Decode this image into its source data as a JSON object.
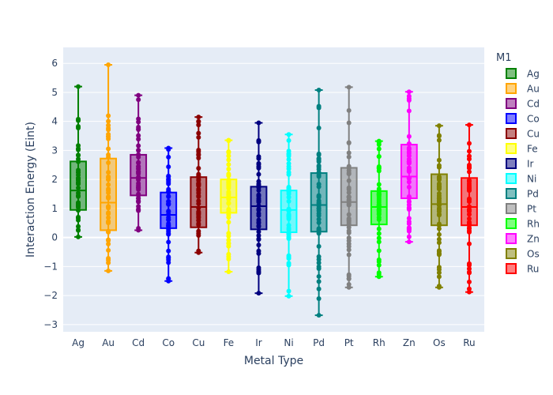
{
  "chart_data": {
    "type": "box",
    "xlabel": "Metal Type",
    "ylabel": "Interaction Energy (Eint)",
    "ylim": [
      -3.25,
      6.55
    ],
    "yticks": [
      -3,
      -2,
      -1,
      0,
      1,
      2,
      3,
      4,
      5,
      6
    ],
    "legend_title": "M1",
    "legend_position": "right",
    "grid": true,
    "categories": [
      "Ag",
      "Au",
      "Cd",
      "Co",
      "Cu",
      "Fe",
      "Ir",
      "Ni",
      "Pd",
      "Pt",
      "Rh",
      "Zn",
      "Os",
      "Ru"
    ],
    "series": [
      {
        "name": "Ag",
        "color": "#008000",
        "min": 0.02,
        "q1": 0.95,
        "median": 1.62,
        "q3": 2.62,
        "max": 5.2
      },
      {
        "name": "Au",
        "color": "#FFA500",
        "min": -1.15,
        "q1": 0.25,
        "median": 1.2,
        "q3": 2.72,
        "max": 5.95
      },
      {
        "name": "Cd",
        "color": "#800080",
        "min": 0.25,
        "q1": 1.45,
        "median": 2.05,
        "q3": 2.85,
        "max": 4.9
      },
      {
        "name": "Co",
        "color": "#0000FF",
        "min": -1.5,
        "q1": 0.32,
        "median": 0.78,
        "q3": 1.55,
        "max": 3.08
      },
      {
        "name": "Cu",
        "color": "#8B0000",
        "min": -0.52,
        "q1": 0.35,
        "median": 1.05,
        "q3": 2.08,
        "max": 4.15
      },
      {
        "name": "Fe",
        "color": "#FFFF00",
        "min": -1.18,
        "q1": 0.85,
        "median": 1.38,
        "q3": 2.0,
        "max": 3.35
      },
      {
        "name": "Ir",
        "color": "#000080",
        "min": -1.92,
        "q1": 0.28,
        "median": 1.08,
        "q3": 1.75,
        "max": 3.95
      },
      {
        "name": "Ni",
        "color": "#00FFFF",
        "min": -2.02,
        "q1": 0.18,
        "median": 0.95,
        "q3": 1.62,
        "max": 3.55
      },
      {
        "name": "Pd",
        "color": "#008080",
        "min": -2.68,
        "q1": 0.2,
        "median": 1.12,
        "q3": 2.22,
        "max": 5.08
      },
      {
        "name": "Pt",
        "color": "#808080",
        "min": -1.72,
        "q1": 0.42,
        "median": 1.22,
        "q3": 2.4,
        "max": 5.18
      },
      {
        "name": "Rh",
        "color": "#00FF00",
        "min": -1.35,
        "q1": 0.45,
        "median": 1.05,
        "q3": 1.6,
        "max": 3.32
      },
      {
        "name": "Zn",
        "color": "#FF00FF",
        "min": -0.15,
        "q1": 1.35,
        "median": 2.1,
        "q3": 3.2,
        "max": 5.02
      },
      {
        "name": "Os",
        "color": "#808000",
        "min": -1.72,
        "q1": 0.42,
        "median": 1.15,
        "q3": 2.18,
        "max": 3.85
      },
      {
        "name": "Ru",
        "color": "#FF0000",
        "min": -1.88,
        "q1": 0.42,
        "median": 1.05,
        "q3": 2.05,
        "max": 3.88
      }
    ]
  }
}
